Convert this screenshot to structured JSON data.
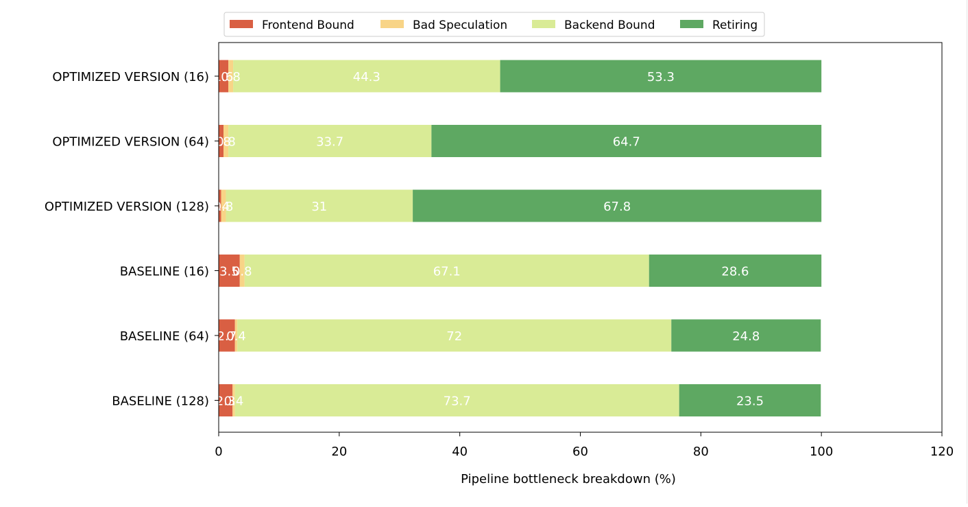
{
  "chart_data": {
    "type": "bar",
    "orientation": "horizontal",
    "stacked": true,
    "xlabel": "Pipeline bottleneck breakdown (%)",
    "ylabel": "",
    "title": "",
    "xlim": [
      0,
      120
    ],
    "xticks": [
      0,
      20,
      40,
      60,
      80,
      100,
      120
    ],
    "grid": false,
    "legend_position": "top-center",
    "categories": [
      "OPTIMIZED VERSION (16)",
      "OPTIMIZED VERSION (64)",
      "OPTIMIZED VERSION (128)",
      "BASELINE (16)",
      "BASELINE (64)",
      "BASELINE (128)"
    ],
    "series": [
      {
        "name": "Frontend Bound",
        "color": "#d95f43",
        "values": [
          1.6,
          0.8,
          0.4,
          3.5,
          2.7,
          2.3
        ],
        "labels": [
          "1.6",
          "0.8",
          "0.4",
          "3.5",
          "2.7",
          "2.3"
        ]
      },
      {
        "name": "Bad Speculation",
        "color": "#f8d487",
        "values": [
          0.8,
          0.8,
          0.8,
          0.8,
          0.4,
          0.4
        ],
        "labels": [
          "0.8",
          "0.8",
          "0.8",
          "0.8",
          "0.4",
          "0.4"
        ]
      },
      {
        "name": "Backend Bound",
        "color": "#d9eb96",
        "values": [
          44.3,
          33.7,
          31.0,
          67.1,
          72.0,
          73.7
        ],
        "labels": [
          "44.3",
          "33.7",
          "31",
          "67.1",
          "72",
          "73.7"
        ]
      },
      {
        "name": "Retiring",
        "color": "#5ea862",
        "values": [
          53.3,
          64.7,
          67.8,
          28.6,
          24.8,
          23.5
        ],
        "labels": [
          "53.3",
          "64.7",
          "67.8",
          "28.6",
          "24.8",
          "23.5"
        ]
      }
    ]
  }
}
